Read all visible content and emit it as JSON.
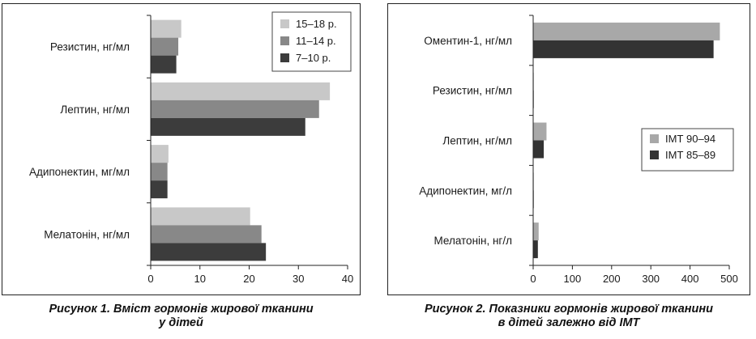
{
  "chart_data": [
    {
      "type": "bar",
      "orientation": "horizontal",
      "categories": [
        "Резистин, нг/мл",
        "Лептин, нг/мл",
        "Адипонектин, мг/мл",
        "Мелатонін, нг/мл"
      ],
      "series": [
        {
          "name": "15–18 р.",
          "color": "#c8c8c8",
          "values": [
            6.2,
            36.4,
            3.6,
            20.2
          ]
        },
        {
          "name": "11–14 р.",
          "color": "#888888",
          "values": [
            5.6,
            34.2,
            3.4,
            22.5
          ]
        },
        {
          "name": "7–10 р.",
          "color": "#3c3c3c",
          "values": [
            5.2,
            31.4,
            3.4,
            23.4
          ]
        }
      ],
      "xlim": [
        0,
        40
      ],
      "xticks": [
        "0",
        "10",
        "20",
        "30",
        "40"
      ],
      "legend": "top-right",
      "caption": [
        "Рисунок 1.  Вміст гормонів жирової тканини",
        "у дітей"
      ]
    },
    {
      "type": "bar",
      "orientation": "horizontal",
      "categories": [
        "Оментин-1, нг/мл",
        "Резистин, нг/мл",
        "Лептин, нг/мл",
        "Адипонектин, мг/л",
        "Мелатонін, нг/л"
      ],
      "series": [
        {
          "name": "ІМТ 90–94",
          "color": "#a8a8a8",
          "values": [
            476,
            1.5,
            34,
            1.5,
            14
          ]
        },
        {
          "name": "ІМТ 85–89",
          "color": "#333333",
          "values": [
            460,
            1.5,
            27,
            1.5,
            12
          ]
        }
      ],
      "xlim": [
        0,
        500
      ],
      "xticks": [
        "0",
        "100",
        "200",
        "300",
        "400",
        "500"
      ],
      "legend": "right",
      "caption": [
        "Рисунок 2.  Показники гормонів жирової тканини",
        "в дітей залежно від ІМТ"
      ]
    }
  ]
}
